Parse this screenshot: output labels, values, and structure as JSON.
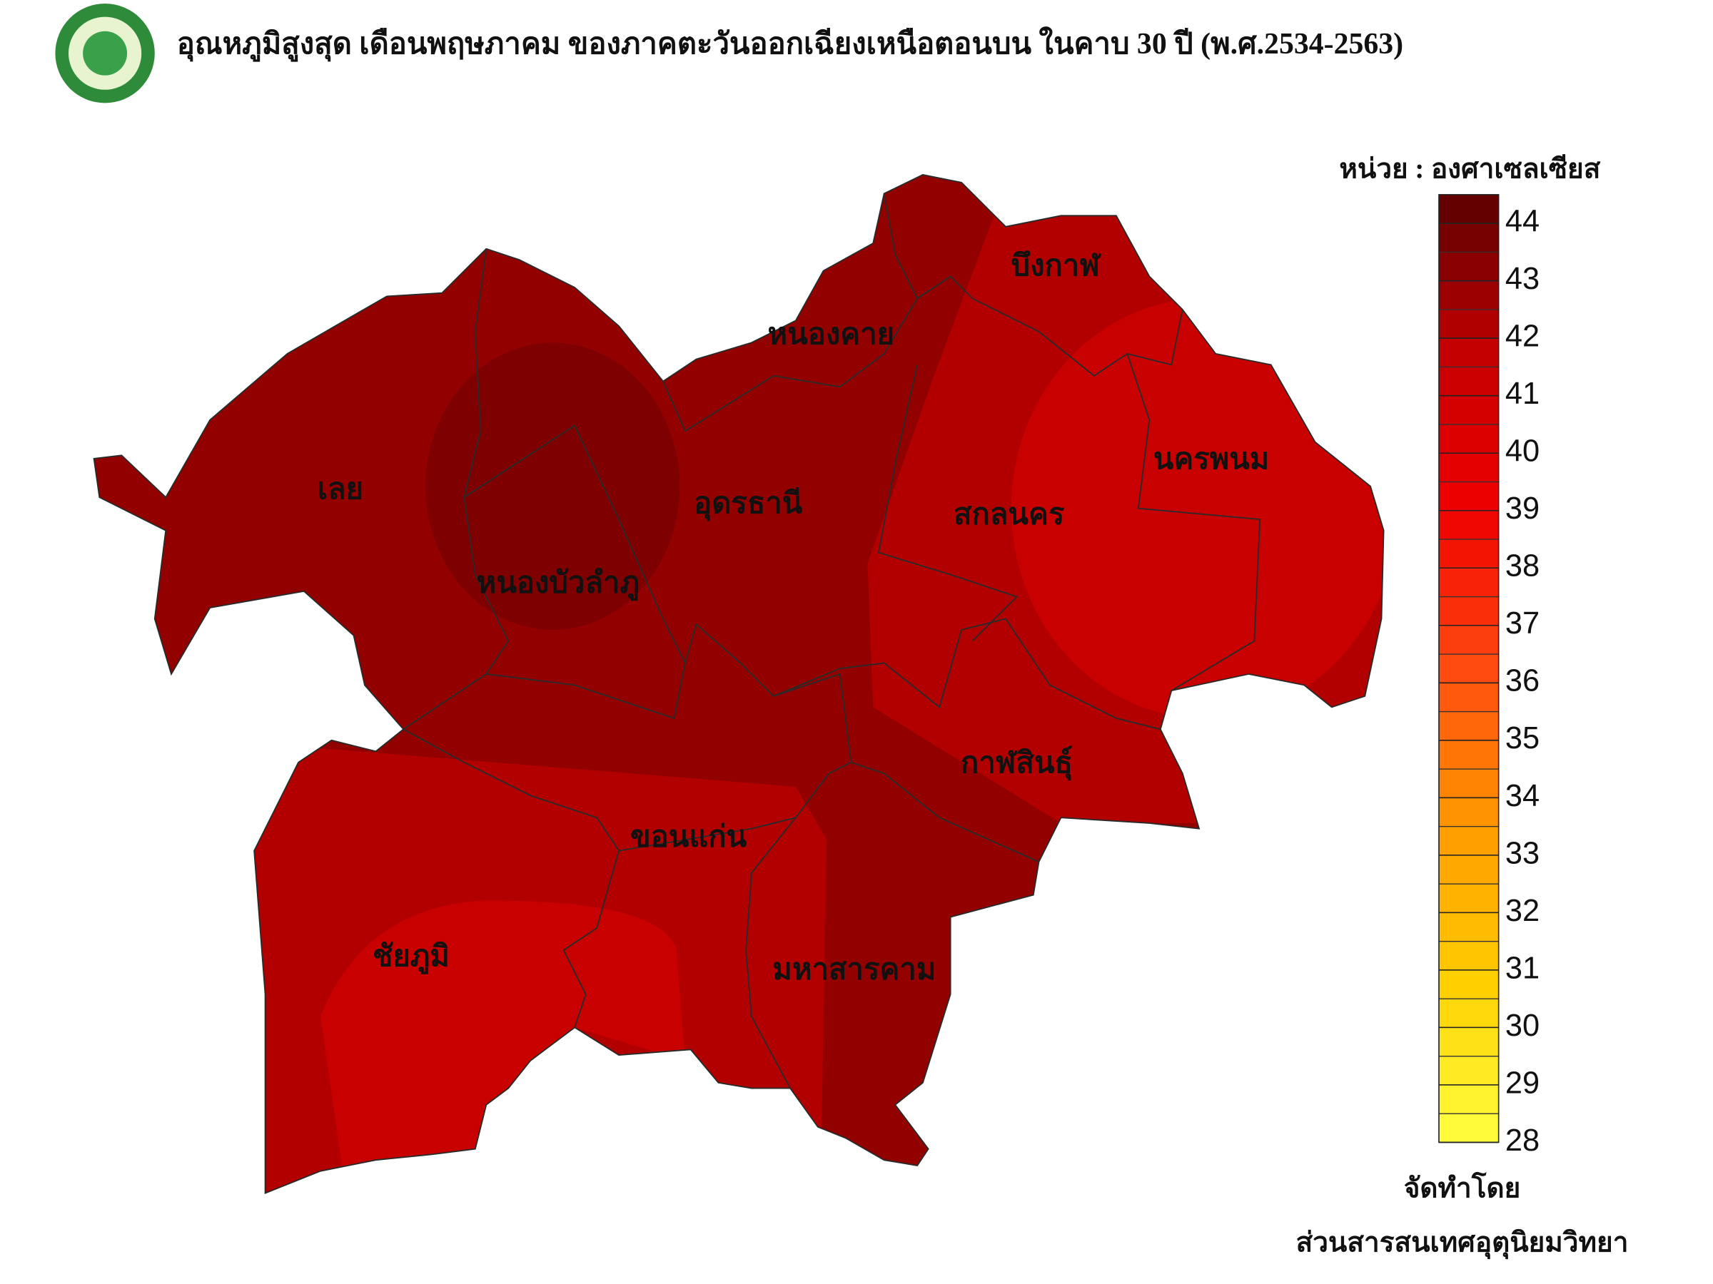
{
  "header": {
    "title": "อุณหภูมิสูงสุด เดือนพฤษภาคม ของภาคตะวันออกเฉียงเหนือตอนบน ในคาบ 30 ปี (พ.ศ.2534-2563)"
  },
  "map": {
    "provinces": [
      {
        "label": "บึงกาฬ"
      },
      {
        "label": "หนองคาย"
      },
      {
        "label": "เลย"
      },
      {
        "label": "อุดรธานี"
      },
      {
        "label": "สกลนคร"
      },
      {
        "label": "นครพนม"
      },
      {
        "label": "หนองบัวลำภู"
      },
      {
        "label": "กาฬสินธุ์"
      },
      {
        "label": "ขอนแก่น"
      },
      {
        "label": "ชัยภูมิ"
      },
      {
        "label": "มหาสารคาม"
      }
    ]
  },
  "legend": {
    "unit": "หน่วย : องศาเซลเซียส",
    "range": [
      28,
      44.5
    ],
    "ticks": [
      28,
      29,
      30,
      31,
      32,
      33,
      34,
      35,
      36,
      37,
      38,
      39,
      40,
      41,
      42,
      43,
      44
    ],
    "colors": [
      "#ffff40",
      "#ffd000",
      "#ff9a00",
      "#ff4a10",
      "#f00000",
      "#c40000",
      "#5a0000"
    ]
  },
  "footer": {
    "prepared_by": "จัดทำโดย",
    "agency": "ส่วนสารสนเทศอุตุนิยมวิทยา"
  }
}
